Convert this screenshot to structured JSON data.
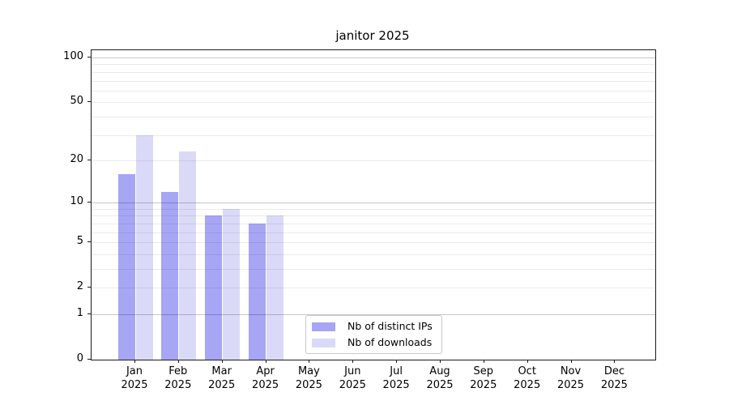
{
  "chart_data": {
    "type": "bar",
    "title": "janitor 2025",
    "months": [
      "Jan",
      "Feb",
      "Mar",
      "Apr",
      "May",
      "Jun",
      "Jul",
      "Aug",
      "Sep",
      "Oct",
      "Nov",
      "Dec"
    ],
    "year": "2025",
    "series": [
      {
        "name": "Nb of distinct IPs",
        "color": "#a6a6f4",
        "values": [
          16,
          12,
          8,
          7,
          null,
          null,
          null,
          null,
          null,
          null,
          null,
          null
        ]
      },
      {
        "name": "Nb of downloads",
        "color": "#dadaf8",
        "values": [
          30,
          23,
          9,
          8,
          null,
          null,
          null,
          null,
          null,
          null,
          null,
          null
        ]
      }
    ],
    "y_scale": "log1p",
    "ylim": [
      0,
      107
    ],
    "y_ticks": [
      0,
      1,
      2,
      5,
      10,
      20,
      50,
      100
    ],
    "y_major_gridlines": [
      1,
      10,
      100
    ],
    "y_minor_gridlines": [
      2,
      3,
      4,
      5,
      6,
      7,
      8,
      9,
      20,
      30,
      40,
      50,
      60,
      70,
      80,
      90
    ],
    "grid_major_color": "rgba(0,0,0,0.22)",
    "grid_minor_color": "rgba(0,0,0,0.08)",
    "legend_position": "bottom-center",
    "grid": "on"
  }
}
